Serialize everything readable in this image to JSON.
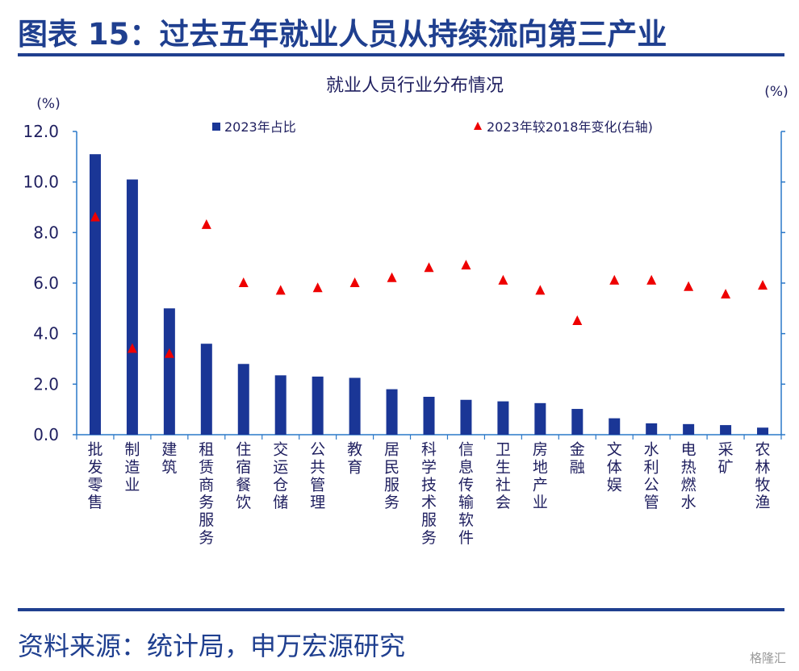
{
  "header": {
    "title": "图表 15：过去五年就业人员从持续流向第三产业"
  },
  "footer": {
    "source": "资料来源：统计局，申万宏源研究",
    "watermark": "格隆汇"
  },
  "colors": {
    "brand": "#1f3f8f",
    "bar": "#1a3696",
    "marker": "#ee0000",
    "axis": "#2a78c8",
    "text": "#1f1f5f"
  },
  "chart_data": {
    "type": "bar",
    "title": "就业人员行业分布情况",
    "y_left_unit": "(%)",
    "y_right_unit": "(%)",
    "ylim": [
      0,
      12
    ],
    "yticks": [
      "0.0",
      "2.0",
      "4.0",
      "6.0",
      "8.0",
      "10.0",
      "12.0"
    ],
    "legend_placement": "top",
    "categories": [
      "批发零售",
      "制造业",
      "建筑",
      "租赁商务服务",
      "住宿餐饮",
      "交运仓储",
      "公共管理",
      "教育",
      "居民服务",
      "科学技术服务",
      "信息传输软件",
      "卫生社会",
      "房地产业",
      "金融",
      "文体娱",
      "水利公管",
      "电热燃水",
      "采矿",
      "农林牧渔"
    ],
    "series": [
      {
        "name": "2023年占比",
        "type": "bar",
        "axis": "left",
        "values": [
          11.1,
          10.1,
          5.0,
          3.6,
          2.8,
          2.35,
          2.3,
          2.25,
          1.8,
          1.5,
          1.38,
          1.32,
          1.25,
          1.02,
          0.65,
          0.45,
          0.42,
          0.38,
          0.28
        ]
      },
      {
        "name": "2023年较2018年变化(右轴)",
        "type": "marker",
        "axis": "right",
        "values": [
          8.6,
          3.4,
          3.2,
          8.3,
          6.0,
          5.7,
          5.8,
          6.0,
          6.2,
          6.6,
          6.7,
          6.1,
          5.7,
          4.5,
          6.1,
          6.1,
          5.85,
          5.55,
          5.9
        ]
      }
    ]
  }
}
